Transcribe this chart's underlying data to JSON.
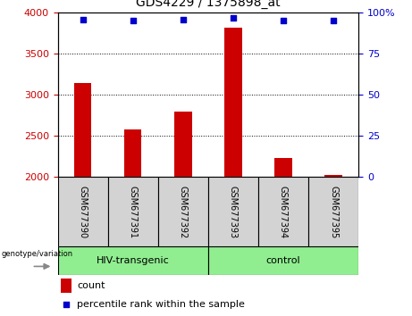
{
  "title": "GDS4229 / 1375898_at",
  "categories": [
    "GSM677390",
    "GSM677391",
    "GSM677392",
    "GSM677393",
    "GSM677394",
    "GSM677395"
  ],
  "bar_values": [
    3140,
    2580,
    2800,
    3820,
    2230,
    2020
  ],
  "bar_base": 2000,
  "percentile_values": [
    96,
    95,
    96,
    97,
    95,
    95
  ],
  "bar_color": "#cc0000",
  "dot_color": "#0000cc",
  "ylim_left": [
    2000,
    4000
  ],
  "ylim_right": [
    0,
    100
  ],
  "yticks_left": [
    2000,
    2500,
    3000,
    3500,
    4000
  ],
  "yticks_right": [
    0,
    25,
    50,
    75,
    100
  ],
  "grid_values": [
    2500,
    3000,
    3500
  ],
  "group1_label": "HIV-transgenic",
  "group2_label": "control",
  "group_label": "genotype/variation",
  "legend_count": "count",
  "legend_percentile": "percentile rank within the sample",
  "background_group": "#90ee90",
  "sample_bg": "#d3d3d3",
  "left_tick_color": "#cc0000",
  "right_tick_color": "#0000cc",
  "bar_width": 0.35,
  "fig_width": 4.61,
  "fig_height": 3.54,
  "dpi": 100
}
